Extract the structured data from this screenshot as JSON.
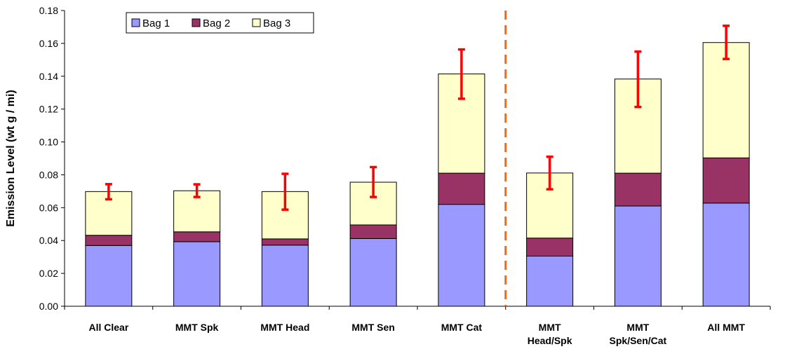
{
  "chart_data": {
    "type": "bar",
    "stacked": true,
    "title": "",
    "xlabel": "",
    "ylabel": "Emission Level (wt g / mi)",
    "ylim": [
      0,
      0.18
    ],
    "yticks": [
      "0.00",
      "0.02",
      "0.04",
      "0.06",
      "0.08",
      "0.10",
      "0.12",
      "0.14",
      "0.16",
      "0.18"
    ],
    "grid": false,
    "legend_position": "top-left",
    "categories": [
      [
        "All Clear"
      ],
      [
        "MMT Spk"
      ],
      [
        "MMT Head"
      ],
      [
        "MMT Sen"
      ],
      [
        "MMT Cat"
      ],
      [
        "MMT",
        "Head/Spk"
      ],
      [
        "MMT",
        "Spk/Sen/Cat"
      ],
      [
        "All MMT"
      ]
    ],
    "series": [
      {
        "name": "Bag 1",
        "color": "#9999ff",
        "values": [
          0.037,
          0.0393,
          0.0372,
          0.0412,
          0.062,
          0.0305,
          0.061,
          0.0628
        ]
      },
      {
        "name": "Bag 2",
        "color": "#993366",
        "values": [
          0.0062,
          0.006,
          0.0038,
          0.0083,
          0.019,
          0.011,
          0.02,
          0.0275
        ]
      },
      {
        "name": "Bag 3",
        "color": "#ffffcc",
        "values": [
          0.0266,
          0.025,
          0.0288,
          0.026,
          0.0604,
          0.0396,
          0.0573,
          0.0702
        ]
      }
    ],
    "error_bars": {
      "color": "#ff0000",
      "low": [
        0.0651,
        0.0665,
        0.0588,
        0.0665,
        0.1263,
        0.0712,
        0.1213,
        0.1505
      ],
      "high": [
        0.0743,
        0.0742,
        0.0806,
        0.0847,
        0.1563,
        0.091,
        0.155,
        0.1707
      ]
    },
    "divider": {
      "after_category_index": 4,
      "color": "#ff6600",
      "style": "dashed"
    }
  }
}
